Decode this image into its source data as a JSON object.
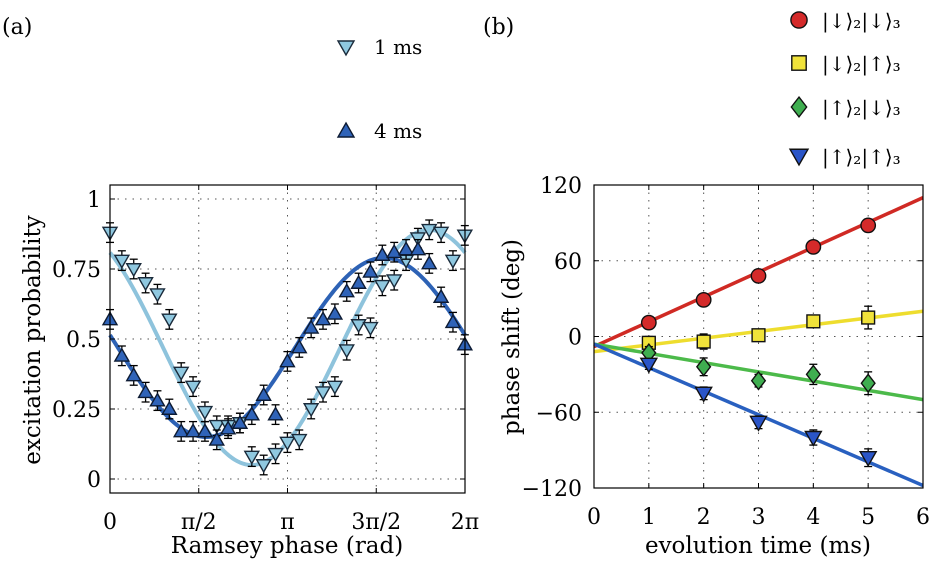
{
  "chart_data": [
    {
      "type": "scatter",
      "panel_label": "(a)",
      "xlabel": "Ramsey phase (rad)",
      "ylabel": "excitation probability",
      "xlim": [
        0,
        6.2832
      ],
      "ylim": [
        -0.05,
        1.05
      ],
      "xticks": [
        0,
        1.5708,
        3.1416,
        4.7124,
        6.2832
      ],
      "xtick_labels": [
        "0",
        "π/2",
        "π",
        "3π/2",
        "2π"
      ],
      "yticks": [
        0,
        0.25,
        0.5,
        0.75,
        1
      ],
      "ytick_labels": [
        "0",
        "0.25",
        "0.5",
        "0.75",
        "1"
      ],
      "grid": true,
      "legend_position": "above-plot",
      "series": [
        {
          "name": "1 ms",
          "marker": "triangle-down",
          "color": "#8fc8e0",
          "edge_color": "#1a2a3a",
          "fit_color": "#8ec3dc",
          "error": 0.035,
          "x": [
            0.0,
            0.21,
            0.42,
            0.63,
            0.84,
            1.05,
            1.26,
            1.47,
            1.68,
            1.89,
            2.09,
            2.3,
            2.51,
            2.72,
            2.93,
            3.14,
            3.35,
            3.56,
            3.77,
            3.98,
            4.19,
            4.4,
            4.61,
            4.82,
            5.03,
            5.24,
            5.45,
            5.65,
            5.86,
            6.07,
            6.28
          ],
          "y": [
            0.88,
            0.78,
            0.75,
            0.7,
            0.66,
            0.57,
            0.38,
            0.33,
            0.24,
            0.19,
            0.19,
            0.2,
            0.08,
            0.05,
            0.09,
            0.13,
            0.14,
            0.25,
            0.31,
            0.33,
            0.46,
            0.55,
            0.54,
            0.69,
            0.71,
            0.78,
            0.86,
            0.89,
            0.88,
            0.78,
            0.87
          ],
          "fit": "0.47 + 0.42*cos(x - 5.65)"
        },
        {
          "name": "4 ms",
          "marker": "triangle-up",
          "color": "#2f63b8",
          "edge_color": "#0d1b33",
          "fit_color": "#2d62b5",
          "error": 0.035,
          "x": [
            0.0,
            0.21,
            0.42,
            0.63,
            0.84,
            1.05,
            1.26,
            1.47,
            1.68,
            1.89,
            2.09,
            2.3,
            2.51,
            2.72,
            2.93,
            3.14,
            3.35,
            3.56,
            3.77,
            3.98,
            4.19,
            4.4,
            4.61,
            4.82,
            5.03,
            5.24,
            5.45,
            5.65,
            5.86,
            6.07,
            6.28
          ],
          "y": [
            0.57,
            0.44,
            0.37,
            0.31,
            0.28,
            0.25,
            0.17,
            0.17,
            0.17,
            0.14,
            0.18,
            0.2,
            0.23,
            0.3,
            0.23,
            0.42,
            0.47,
            0.54,
            0.57,
            0.59,
            0.67,
            0.7,
            0.74,
            0.8,
            0.81,
            0.82,
            0.82,
            0.77,
            0.65,
            0.56,
            0.48
          ],
          "fit": "0.47 + 0.32*cos(x - 4.85)"
        }
      ]
    },
    {
      "type": "scatter",
      "panel_label": "(b)",
      "xlabel": "evolution time (ms)",
      "ylabel": "phase shift (deg)",
      "xlim": [
        0,
        6
      ],
      "ylim": [
        -120,
        120
      ],
      "xticks": [
        0,
        1,
        2,
        3,
        4,
        5,
        6
      ],
      "xtick_labels": [
        "0",
        "1",
        "2",
        "3",
        "4",
        "5",
        "6"
      ],
      "yticks": [
        -120,
        -60,
        0,
        60,
        120
      ],
      "ytick_labels": [
        "−120",
        "−60",
        "0",
        "60",
        "120"
      ],
      "grid": true,
      "legend_position": "above-plot",
      "series": [
        {
          "name": "|↓⟩₂|↓⟩₃",
          "marker": "circle",
          "color": "#d42a2a",
          "fit_color": "#d02a24",
          "x": [
            1,
            2,
            3,
            4,
            5
          ],
          "y": [
            11,
            29,
            48,
            71,
            88
          ],
          "error": [
            4,
            4,
            4,
            4,
            5
          ],
          "fit_endpoints": [
            [
              0,
              -8
            ],
            [
              6,
              110
            ]
          ]
        },
        {
          "name": "|↓⟩₂|↑⟩₃",
          "marker": "square",
          "color": "#f0e23a",
          "fit_color": "#eedd2e",
          "x": [
            1,
            2,
            3,
            4,
            5
          ],
          "y": [
            -5,
            -4,
            1,
            12,
            15
          ],
          "error": [
            5,
            6,
            4,
            4,
            9
          ],
          "fit_endpoints": [
            [
              0,
              -12
            ],
            [
              6,
              20
            ]
          ]
        },
        {
          "name": "|↑⟩₂|↓⟩₃",
          "marker": "diamond",
          "color": "#3fae50",
          "fit_color": "#4cba4a",
          "x": [
            1,
            2,
            3,
            4,
            5
          ],
          "y": [
            -13,
            -24,
            -35,
            -30,
            -37
          ],
          "error": [
            5,
            7,
            5,
            8,
            9
          ],
          "fit_endpoints": [
            [
              0,
              -6
            ],
            [
              6,
              -50
            ]
          ]
        },
        {
          "name": "|↑⟩₂|↑⟩₃",
          "marker": "triangle-down",
          "color": "#2a55c8",
          "fit_color": "#2960c0",
          "x": [
            1,
            2,
            3,
            4,
            5
          ],
          "y": [
            -22,
            -45,
            -68,
            -80,
            -96
          ],
          "error": [
            4,
            5,
            5,
            6,
            7
          ],
          "fit_endpoints": [
            [
              0,
              -6
            ],
            [
              6,
              -118
            ]
          ]
        }
      ]
    }
  ]
}
